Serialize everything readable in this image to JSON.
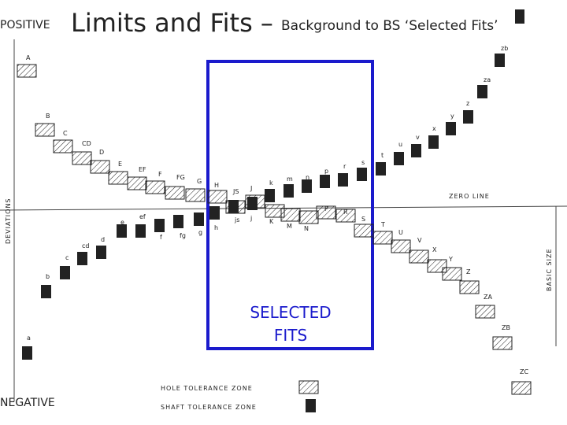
{
  "header": {
    "title": "Limits and Fits –",
    "subtitle": "Background to BS ‘Selected Fits’"
  },
  "side_labels": {
    "positive": "POSITIVE",
    "negative": "NEGATIVE"
  },
  "axis_labels": {
    "deviations": "DEVIATIONS",
    "zero_line": "ZERO LINE",
    "basic_size": "BASIC SIZE"
  },
  "selected_fits": {
    "line1": "SELECTED",
    "line2": "FITS"
  },
  "legend": {
    "hole": "HOLE TOLERANCE ZONE",
    "shaft": "SHAFT TOLERANCE ZONE"
  },
  "holes": [
    "A",
    "B",
    "C",
    "CD",
    "D",
    "E",
    "EF",
    "F",
    "FG",
    "G",
    "H",
    "JS",
    "J",
    "K",
    "M",
    "N",
    "P",
    "R",
    "S",
    "T",
    "U",
    "V",
    "X",
    "Y",
    "Z",
    "ZA",
    "ZB",
    "ZC"
  ],
  "shafts": [
    "a",
    "b",
    "c",
    "cd",
    "d",
    "e",
    "ef",
    "f",
    "fg",
    "g",
    "h",
    "js",
    "j",
    "k",
    "m",
    "n",
    "p",
    "r",
    "s",
    "t",
    "u",
    "v",
    "x",
    "y",
    "z",
    "za",
    "zb"
  ]
}
